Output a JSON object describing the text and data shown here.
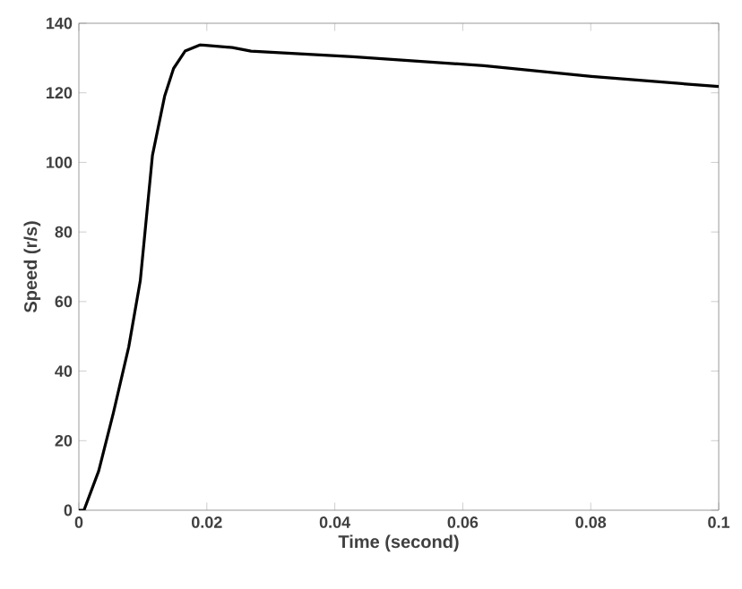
{
  "chart_data": {
    "type": "line",
    "xlabel": "Time (second)",
    "ylabel": "Speed (r/s)",
    "xlim": [
      0,
      0.1
    ],
    "ylim": [
      0,
      140
    ],
    "xticks": [
      0,
      0.02,
      0.04,
      0.06,
      0.08,
      0.1
    ],
    "yticks": [
      0,
      20,
      40,
      60,
      80,
      100,
      120,
      140
    ],
    "series": [
      {
        "color": "#000000",
        "x": [
          0,
          0.0008,
          0.0031,
          0.0054,
          0.0078,
          0.0096,
          0.0115,
          0.0134,
          0.0148,
          0.0166,
          0.019,
          0.024,
          0.0269,
          0.0428,
          0.0633,
          0.0801,
          0.1
        ],
        "values": [
          0,
          0,
          11.3,
          28,
          47,
          66,
          102,
          119,
          127,
          132,
          133.8,
          133,
          132,
          130.4,
          127.8,
          124.7,
          121.8
        ]
      }
    ]
  }
}
